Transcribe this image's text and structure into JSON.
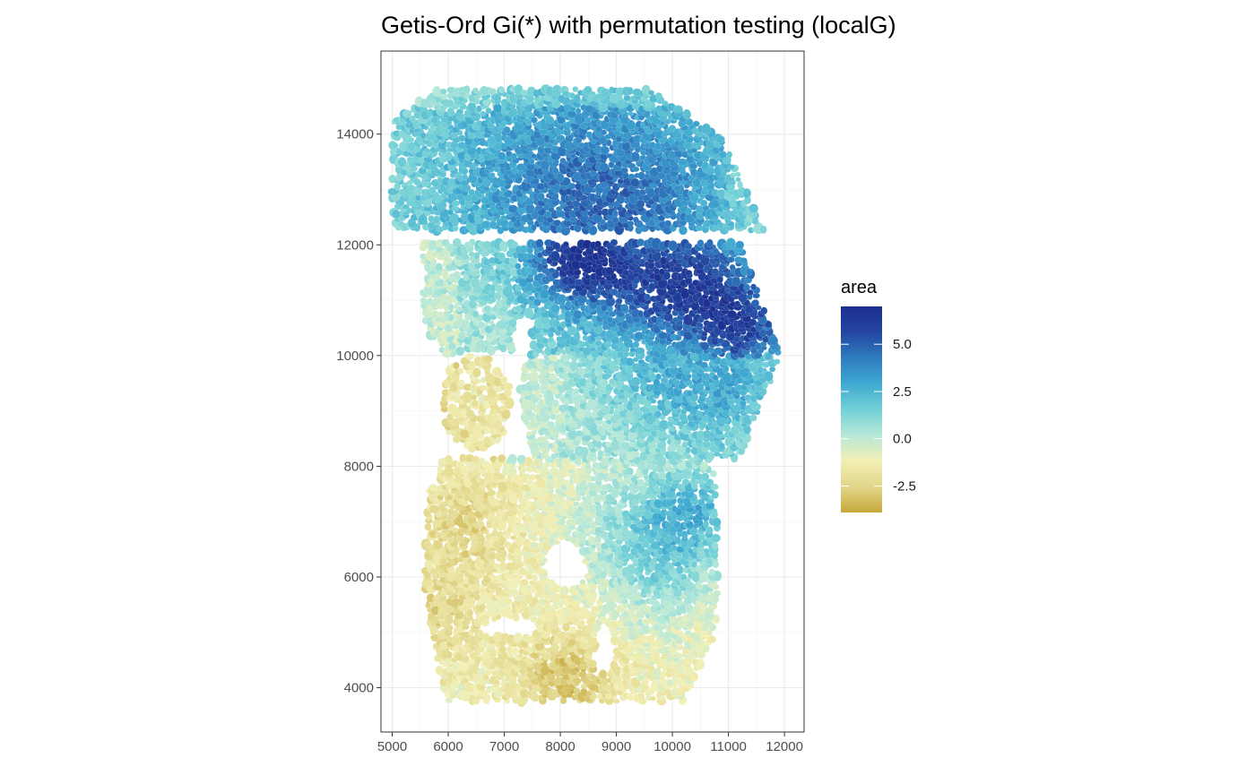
{
  "chart_data": {
    "type": "heatmap",
    "title": "Getis-Ord Gi(*) with permutation testing (localG)",
    "xlabel": "",
    "ylabel": "",
    "xlim": [
      4800,
      12350
    ],
    "ylim": [
      3200,
      15500
    ],
    "x_ticks": [
      5000,
      6000,
      7000,
      8000,
      9000,
      10000,
      11000,
      12000
    ],
    "x_tick_labels": [
      "5000",
      "6000",
      "7000",
      "8000",
      "9000",
      "10000",
      "11000",
      "12000"
    ],
    "y_ticks": [
      4000,
      6000,
      8000,
      10000,
      12000,
      14000
    ],
    "y_tick_labels": [
      "4000",
      "6000",
      "8000",
      "10000",
      "12000",
      "14000"
    ],
    "grid": true,
    "legend": {
      "title": "area",
      "placement": "right",
      "range": [
        -3.9,
        7.0
      ],
      "ticks": [
        -2.5,
        0.0,
        2.5,
        5.0
      ],
      "tick_labels": [
        "-2.5",
        "0.0",
        "2.5",
        "5.0"
      ],
      "colors": [
        "#c7a83a",
        "#e1d68a",
        "#f2efb4",
        "#b7e8d8",
        "#72d0d6",
        "#3fa9d0",
        "#2f7cbf",
        "#2346a0",
        "#1c2f8f"
      ]
    },
    "regions": [
      {
        "name": "upper-band",
        "x_range": [
          5000,
          11700
        ],
        "y_range": [
          12200,
          14900
        ],
        "level_range": [
          -0.5,
          6.0
        ]
      },
      {
        "name": "middle-band",
        "x_range": [
          5500,
          11950
        ],
        "y_range": [
          10000,
          12050
        ],
        "level_range": [
          -1.0,
          7.0
        ]
      },
      {
        "name": "central-lobe",
        "x_range": [
          7200,
          11900
        ],
        "y_range": [
          8100,
          10300
        ],
        "level_range": [
          -0.5,
          4.5
        ]
      },
      {
        "name": "left-fragment",
        "x_range": [
          5900,
          7100
        ],
        "y_range": [
          8300,
          10000
        ],
        "level_range": [
          -3.0,
          0.5
        ]
      },
      {
        "name": "lower-tissue",
        "x_range": [
          5600,
          10900
        ],
        "y_range": [
          3700,
          8200
        ],
        "level_range": [
          -3.9,
          3.0
        ]
      }
    ]
  }
}
